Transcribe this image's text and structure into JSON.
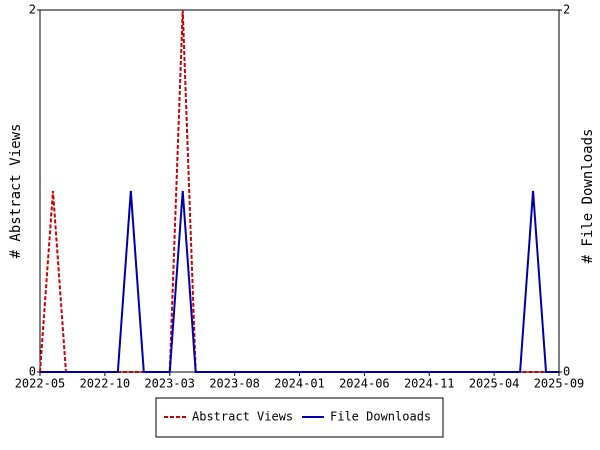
{
  "chart_data": {
    "type": "line",
    "categories": [
      "2022-05",
      null,
      null,
      null,
      null,
      "2022-10",
      null,
      null,
      null,
      null,
      "2023-03",
      null,
      null,
      null,
      null,
      "2023-08",
      null,
      null,
      null,
      null,
      "2024-01",
      null,
      null,
      null,
      null,
      "2024-06",
      null,
      null,
      null,
      null,
      "2024-11",
      null,
      null,
      null,
      null,
      "2025-04",
      null,
      null,
      null,
      null,
      "2025-09"
    ],
    "series": [
      {
        "name": "Abstract Views",
        "color": "#cc0000",
        "dashed": true,
        "values": [
          0,
          1,
          0,
          0,
          0,
          0,
          0,
          0,
          0,
          0,
          0,
          2,
          0,
          0,
          0,
          0,
          0,
          0,
          0,
          0,
          0,
          0,
          0,
          0,
          0,
          0,
          0,
          0,
          0,
          0,
          0,
          0,
          0,
          0,
          0,
          0,
          0,
          0,
          0,
          0,
          0
        ]
      },
      {
        "name": "File Downloads",
        "color": "#0000aa",
        "dashed": false,
        "axis": "y2",
        "values": [
          0,
          0,
          0,
          0,
          0,
          0,
          0,
          1,
          0,
          0,
          0,
          1,
          0,
          0,
          0,
          0,
          0,
          0,
          0,
          0,
          0,
          0,
          0,
          0,
          0,
          0,
          0,
          0,
          0,
          0,
          0,
          0,
          0,
          0,
          0,
          0,
          0,
          0,
          1,
          0,
          0
        ]
      }
    ],
    "ylabel": "# Abstract Views",
    "y2label": "# File Downloads",
    "ylim": [
      0,
      2
    ],
    "yticks": [
      0,
      2
    ],
    "y2lim": [
      0,
      2
    ],
    "y2ticks": [
      0,
      2
    ],
    "legend": "bottom"
  }
}
